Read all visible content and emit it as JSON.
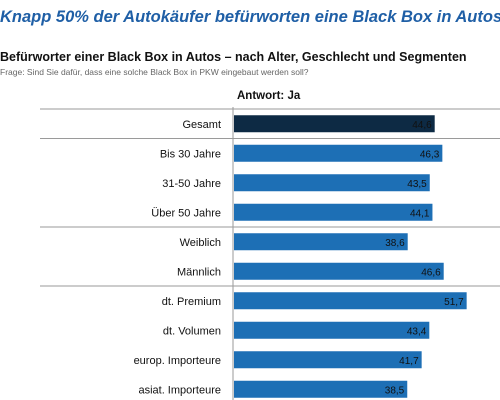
{
  "headline": "Knapp 50% der Autokäufer befürworten eine Black Box in Autos",
  "subtitle": "Befürworter einer Black Box in Autos – nach Alter, Geschlecht und Segmenten",
  "question": "Frage: Sind Sie dafür, dass eine solche Black Box in PKW eingebaut werden soll?",
  "colors": {
    "total_bar": "#0d2a44",
    "bar": "#1d6fb5",
    "headline": "#1f5fa6"
  },
  "chart_data": {
    "type": "bar",
    "orientation": "horizontal",
    "title": "Befürworter einer Black Box in Autos – nach Alter, Geschlecht und Segmenten",
    "answer_label": "Antwort: Ja",
    "categories": [
      "Gesamt",
      "Bis 30 Jahre",
      "31-50 Jahre",
      "Über 50 Jahre",
      "Weiblich",
      "Männlich",
      "dt. Premium",
      "dt. Volumen",
      "europ. Importeure",
      "asiat. Importeure"
    ],
    "values": [
      44.6,
      46.3,
      43.5,
      44.1,
      38.6,
      46.6,
      51.7,
      43.4,
      41.7,
      38.5
    ],
    "value_labels": [
      "44,6",
      "46,3",
      "43,5",
      "44,1",
      "38,6",
      "46,6",
      "51,7",
      "43,4",
      "41,7",
      "38,5"
    ],
    "groups": [
      [
        0
      ],
      [
        1,
        2,
        3
      ],
      [
        4,
        5
      ],
      [
        6,
        7,
        8,
        9
      ]
    ],
    "xlim": [
      0,
      60
    ],
    "grid": false,
    "legend": "none"
  }
}
